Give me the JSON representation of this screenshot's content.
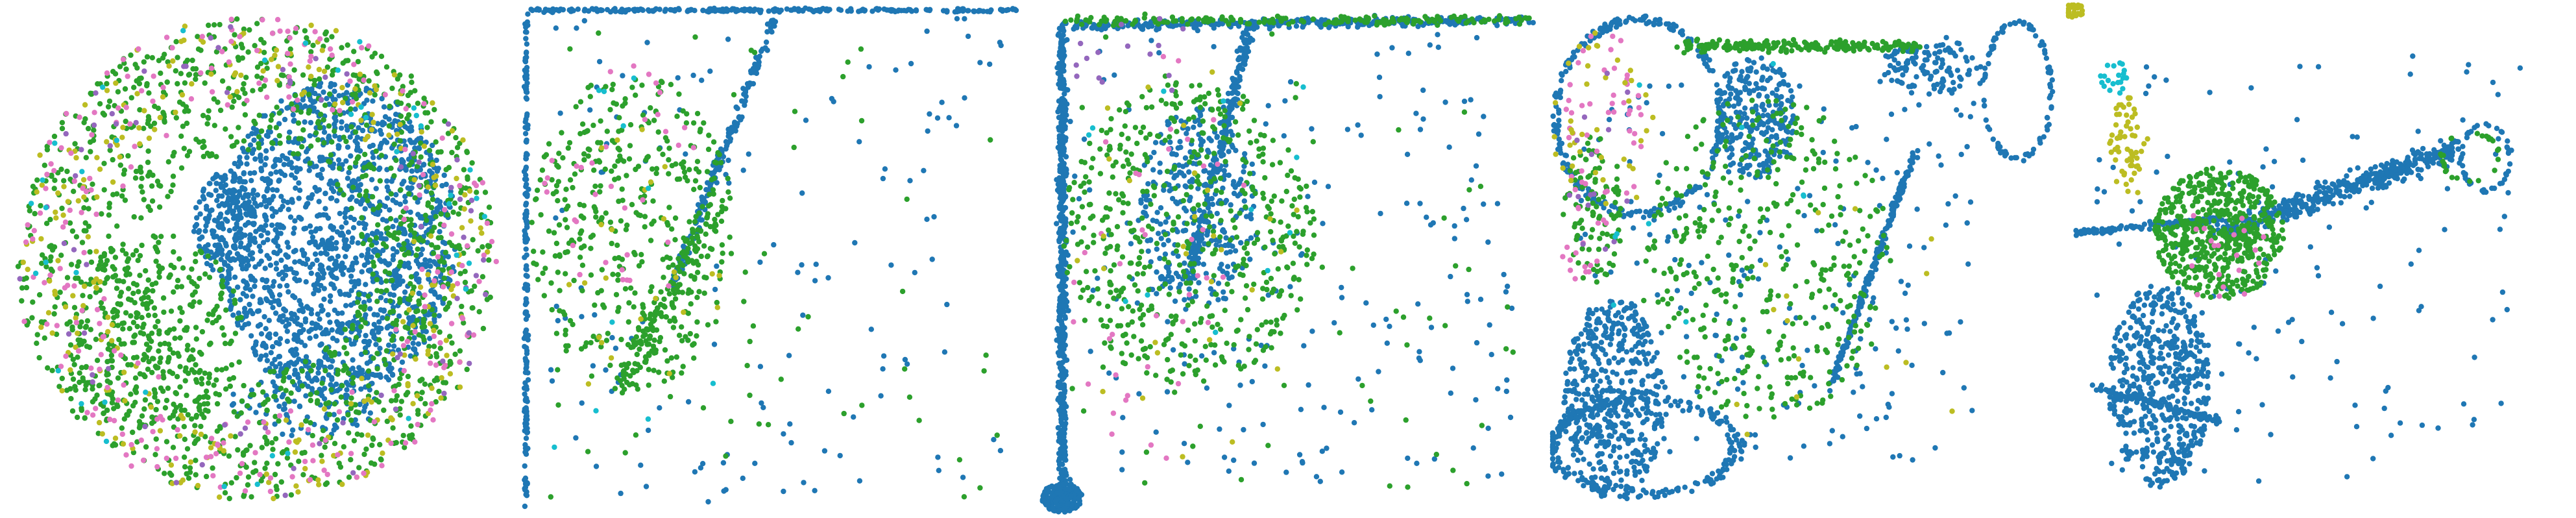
{
  "figure": {
    "title": ""
  },
  "colors": {
    "blue": "#1f77b4",
    "green": "#2ca02c",
    "pink": "#e377c2",
    "olive": "#bcbd22",
    "purple": "#9467bd",
    "cyan": "#17becf"
  },
  "chart_data": [
    {
      "type": "scatter",
      "panel": 1,
      "title": "",
      "axes_visible": false,
      "grid": false,
      "xlim": [
        -1,
        1
      ],
      "ylim": [
        -1,
        1
      ],
      "series": [
        {
          "name": "blue",
          "color": "#1f77b4",
          "clusters": [
            {
              "shape": "ellipse",
              "cx": 0.32,
              "cy": 0.08,
              "rx": 0.48,
              "ry": 0.62,
              "n": 1500
            },
            {
              "shape": "ellipse",
              "cx": -0.13,
              "cy": 0.14,
              "rx": 0.12,
              "ry": 0.2,
              "n": 160
            },
            {
              "shape": "ellipse",
              "cx": 0.2,
              "cy": -0.55,
              "rx": 0.3,
              "ry": 0.15,
              "n": 120
            }
          ]
        },
        {
          "name": "green",
          "color": "#2ca02c",
          "clusters": [
            {
              "shape": "ring",
              "cx": 0.0,
              "cy": 0.0,
              "rx": 0.95,
              "ry": 0.95,
              "inner": 0.45,
              "n": 1300
            },
            {
              "shape": "ellipse",
              "cx": -0.4,
              "cy": -0.3,
              "rx": 0.35,
              "ry": 0.4,
              "n": 300
            }
          ]
        },
        {
          "name": "olive",
          "color": "#bcbd22",
          "clusters": [
            {
              "shape": "ring",
              "cx": 0.0,
              "cy": 0.0,
              "rx": 0.96,
              "ry": 0.96,
              "inner": 0.65,
              "n": 260
            }
          ]
        },
        {
          "name": "pink",
          "color": "#e377c2",
          "clusters": [
            {
              "shape": "ring",
              "cx": 0.0,
              "cy": 0.0,
              "rx": 0.96,
              "ry": 0.96,
              "inner": 0.62,
              "n": 240
            }
          ]
        },
        {
          "name": "purple",
          "color": "#9467bd",
          "clusters": [
            {
              "shape": "ring",
              "cx": 0.0,
              "cy": 0.0,
              "rx": 0.95,
              "ry": 0.95,
              "inner": 0.7,
              "n": 70
            }
          ]
        },
        {
          "name": "cyan",
          "color": "#17becf",
          "clusters": [
            {
              "shape": "ring",
              "cx": 0.0,
              "cy": 0.0,
              "rx": 0.95,
              "ry": 0.95,
              "inner": 0.7,
              "n": 40
            }
          ]
        }
      ]
    },
    {
      "type": "scatter",
      "panel": 2,
      "title": "",
      "axes_visible": false,
      "grid": false,
      "xlim": [
        0,
        1
      ],
      "ylim": [
        0,
        1
      ],
      "series": [
        {
          "name": "blue",
          "color": "#1f77b4",
          "clusters": [
            {
              "shape": "line",
              "x1": 0.02,
              "y1": 0.99,
              "x2": 0.98,
              "y2": 0.99,
              "spread": 0.006,
              "n": 260
            },
            {
              "shape": "line",
              "x1": 0.01,
              "y1": 0.01,
              "x2": 0.01,
              "y2": 0.99,
              "spread": 0.006,
              "n": 200
            },
            {
              "shape": "line",
              "x1": 0.3,
              "y1": 0.45,
              "x2": 0.5,
              "y2": 0.97,
              "spread": 0.015,
              "n": 170
            },
            {
              "shape": "uniform",
              "x1": 0.05,
              "y1": 0.02,
              "x2": 0.95,
              "y2": 0.98,
              "n": 140
            }
          ]
        },
        {
          "name": "green",
          "color": "#2ca02c",
          "clusters": [
            {
              "shape": "ellipse",
              "cx": 0.22,
              "cy": 0.55,
              "rx": 0.2,
              "ry": 0.32,
              "n": 420
            },
            {
              "shape": "line",
              "x1": 0.2,
              "y1": 0.25,
              "x2": 0.38,
              "y2": 0.6,
              "spread": 0.05,
              "n": 140
            },
            {
              "shape": "uniform",
              "x1": 0.05,
              "y1": 0.02,
              "x2": 0.95,
              "y2": 0.98,
              "n": 60
            }
          ]
        },
        {
          "name": "pink",
          "color": "#e377c2",
          "clusters": [
            {
              "shape": "ellipse",
              "cx": 0.2,
              "cy": 0.65,
              "rx": 0.16,
              "ry": 0.25,
              "n": 35
            }
          ]
        },
        {
          "name": "olive",
          "color": "#bcbd22",
          "clusters": [
            {
              "shape": "ellipse",
              "cx": 0.22,
              "cy": 0.5,
              "rx": 0.2,
              "ry": 0.3,
              "n": 25
            }
          ]
        },
        {
          "name": "cyan",
          "color": "#17becf",
          "clusters": [
            {
              "shape": "uniform",
              "x1": 0.05,
              "y1": 0.1,
              "x2": 0.4,
              "y2": 0.9,
              "n": 10
            }
          ]
        }
      ]
    },
    {
      "type": "scatter",
      "panel": 3,
      "title": "",
      "axes_visible": false,
      "grid": false,
      "xlim": [
        0,
        1
      ],
      "ylim": [
        0,
        1
      ],
      "series": [
        {
          "name": "blue",
          "color": "#1f77b4",
          "clusters": [
            {
              "shape": "line",
              "x1": 0.05,
              "y1": 0.02,
              "x2": 0.05,
              "y2": 0.97,
              "spread": 0.015,
              "n": 600
            },
            {
              "shape": "ellipse",
              "cx": 0.05,
              "cy": 0.03,
              "rx": 0.04,
              "ry": 0.03,
              "n": 200
            },
            {
              "shape": "line",
              "x1": 0.06,
              "y1": 0.96,
              "x2": 0.98,
              "y2": 0.97,
              "spread": 0.015,
              "n": 350
            },
            {
              "shape": "line",
              "x1": 0.3,
              "y1": 0.45,
              "x2": 0.42,
              "y2": 0.95,
              "spread": 0.02,
              "n": 220
            },
            {
              "shape": "ellipse",
              "cx": 0.32,
              "cy": 0.6,
              "rx": 0.12,
              "ry": 0.2,
              "n": 300
            },
            {
              "shape": "uniform",
              "x1": 0.05,
              "y1": 0.05,
              "x2": 0.95,
              "y2": 0.95,
              "n": 200
            }
          ]
        },
        {
          "name": "green",
          "color": "#2ca02c",
          "clusters": [
            {
              "shape": "ellipse",
              "cx": 0.3,
              "cy": 0.55,
              "rx": 0.25,
              "ry": 0.3,
              "n": 500
            },
            {
              "shape": "line",
              "x1": 0.06,
              "y1": 0.97,
              "x2": 0.98,
              "y2": 0.97,
              "spread": 0.015,
              "n": 180
            },
            {
              "shape": "uniform",
              "x1": 0.05,
              "y1": 0.05,
              "x2": 0.95,
              "y2": 0.95,
              "n": 80
            }
          ]
        },
        {
          "name": "pink",
          "color": "#e377c2",
          "clusters": [
            {
              "shape": "ellipse",
              "cx": 0.25,
              "cy": 0.5,
              "rx": 0.22,
              "ry": 0.4,
              "n": 40
            }
          ]
        },
        {
          "name": "olive",
          "color": "#bcbd22",
          "clusters": [
            {
              "shape": "ellipse",
              "cx": 0.3,
              "cy": 0.5,
              "rx": 0.25,
              "ry": 0.4,
              "n": 30
            }
          ]
        },
        {
          "name": "purple",
          "color": "#9467bd",
          "clusters": [
            {
              "shape": "ellipse",
              "cx": 0.2,
              "cy": 0.9,
              "rx": 0.15,
              "ry": 0.08,
              "n": 15
            }
          ]
        },
        {
          "name": "cyan",
          "color": "#17becf",
          "clusters": [
            {
              "shape": "uniform",
              "x1": 0.05,
              "y1": 0.1,
              "x2": 0.6,
              "y2": 0.9,
              "n": 12
            }
          ]
        }
      ]
    },
    {
      "type": "scatter",
      "panel": 4,
      "title": "",
      "axes_visible": false,
      "grid": false,
      "xlim": [
        0,
        1
      ],
      "ylim": [
        0,
        1
      ],
      "series": [
        {
          "name": "blue",
          "color": "#1f77b4",
          "clusters": [
            {
              "shape": "ring",
              "cx": 0.17,
              "cy": 0.78,
              "rx": 0.17,
              "ry": 0.2,
              "inner": 0.92,
              "n": 260
            },
            {
              "shape": "ellipse",
              "cx": 0.12,
              "cy": 0.22,
              "rx": 0.1,
              "ry": 0.2,
              "n": 500
            },
            {
              "shape": "ring",
              "cx": 0.18,
              "cy": 0.13,
              "rx": 0.2,
              "ry": 0.1,
              "inner": 0.85,
              "n": 220
            },
            {
              "shape": "ellipse",
              "cx": 0.4,
              "cy": 0.78,
              "rx": 0.08,
              "ry": 0.12,
              "n": 250
            },
            {
              "shape": "line",
              "x1": 0.55,
              "y1": 0.25,
              "x2": 0.72,
              "y2": 0.72,
              "spread": 0.01,
              "n": 200
            },
            {
              "shape": "ellipse",
              "cx": 0.75,
              "cy": 0.88,
              "rx": 0.1,
              "ry": 0.06,
              "n": 120
            },
            {
              "shape": "ring",
              "cx": 0.92,
              "cy": 0.83,
              "rx": 0.07,
              "ry": 0.14,
              "inner": 0.9,
              "n": 90
            },
            {
              "shape": "uniform",
              "x1": 0.05,
              "y1": 0.1,
              "x2": 0.85,
              "y2": 0.85,
              "n": 220
            }
          ]
        },
        {
          "name": "green",
          "color": "#2ca02c",
          "clusters": [
            {
              "shape": "line",
              "x1": 0.25,
              "y1": 0.92,
              "x2": 0.72,
              "y2": 0.92,
              "spread": 0.02,
              "n": 220
            },
            {
              "shape": "ellipse",
              "cx": 0.42,
              "cy": 0.5,
              "rx": 0.25,
              "ry": 0.32,
              "n": 400
            },
            {
              "shape": "ellipse",
              "cx": 0.08,
              "cy": 0.6,
              "rx": 0.06,
              "ry": 0.15,
              "n": 100
            }
          ]
        },
        {
          "name": "pink",
          "color": "#e377c2",
          "clusters": [
            {
              "shape": "ellipse",
              "cx": 0.1,
              "cy": 0.75,
              "rx": 0.08,
              "ry": 0.2,
              "n": 50
            },
            {
              "shape": "ellipse",
              "cx": 0.05,
              "cy": 0.5,
              "rx": 0.04,
              "ry": 0.04,
              "n": 12
            }
          ]
        },
        {
          "name": "olive",
          "color": "#bcbd22",
          "clusters": [
            {
              "shape": "ellipse",
              "cx": 0.1,
              "cy": 0.75,
              "rx": 0.1,
              "ry": 0.2,
              "n": 40
            },
            {
              "shape": "uniform",
              "x1": 0.3,
              "y1": 0.15,
              "x2": 0.8,
              "y2": 0.6,
              "n": 15
            }
          ]
        },
        {
          "name": "purple",
          "color": "#9467bd",
          "clusters": [
            {
              "shape": "ellipse",
              "cx": 0.1,
              "cy": 0.7,
              "rx": 0.08,
              "ry": 0.2,
              "n": 15
            }
          ]
        },
        {
          "name": "cyan",
          "color": "#17becf",
          "clusters": [
            {
              "shape": "uniform",
              "x1": 0.1,
              "y1": 0.3,
              "x2": 0.5,
              "y2": 0.9,
              "n": 10
            }
          ]
        }
      ]
    },
    {
      "type": "scatter",
      "panel": 5,
      "title": "",
      "axes_visible": false,
      "grid": false,
      "xlim": [
        0,
        1
      ],
      "ylim": [
        0,
        1
      ],
      "series": [
        {
          "name": "blue",
          "color": "#1f77b4",
          "clusters": [
            {
              "shape": "line",
              "x1": 0.3,
              "y1": 0.55,
              "x2": 0.78,
              "y2": 0.72,
              "spread": 0.04,
              "n": 450
            },
            {
              "shape": "line",
              "x1": 0.01,
              "y1": 0.55,
              "x2": 0.3,
              "y2": 0.58,
              "spread": 0.01,
              "n": 120
            },
            {
              "shape": "ellipse",
              "cx": 0.18,
              "cy": 0.25,
              "rx": 0.1,
              "ry": 0.2,
              "n": 500
            },
            {
              "shape": "line",
              "x1": 0.05,
              "y1": 0.25,
              "x2": 0.3,
              "y2": 0.18,
              "spread": 0.012,
              "n": 100
            },
            {
              "shape": "ring",
              "cx": 0.83,
              "cy": 0.7,
              "rx": 0.05,
              "ry": 0.07,
              "inner": 0.9,
              "n": 40
            },
            {
              "shape": "uniform",
              "x1": 0.05,
              "y1": 0.05,
              "x2": 0.9,
              "y2": 0.9,
              "n": 140
            }
          ]
        },
        {
          "name": "green",
          "color": "#2ca02c",
          "clusters": [
            {
              "shape": "ellipse",
              "cx": 0.3,
              "cy": 0.55,
              "rx": 0.13,
              "ry": 0.13,
              "n": 550
            },
            {
              "shape": "ring",
              "cx": 0.8,
              "cy": 0.7,
              "rx": 0.06,
              "ry": 0.05,
              "inner": 0.9,
              "n": 25
            }
          ]
        },
        {
          "name": "olive",
          "color": "#bcbd22",
          "clusters": [
            {
              "shape": "ellipse",
              "cx": 0.12,
              "cy": 0.72,
              "rx": 0.04,
              "ry": 0.1,
              "n": 60
            },
            {
              "shape": "ellipse",
              "cx": 0.01,
              "cy": 0.99,
              "rx": 0.02,
              "ry": 0.015,
              "n": 35
            }
          ]
        },
        {
          "name": "cyan",
          "color": "#17becf",
          "clusters": [
            {
              "shape": "ellipse",
              "cx": 0.09,
              "cy": 0.86,
              "rx": 0.03,
              "ry": 0.04,
              "n": 20
            }
          ]
        },
        {
          "name": "pink",
          "color": "#e377c2",
          "clusters": [
            {
              "shape": "ellipse",
              "cx": 0.3,
              "cy": 0.5,
              "rx": 0.1,
              "ry": 0.1,
              "n": 20
            }
          ]
        }
      ]
    }
  ]
}
